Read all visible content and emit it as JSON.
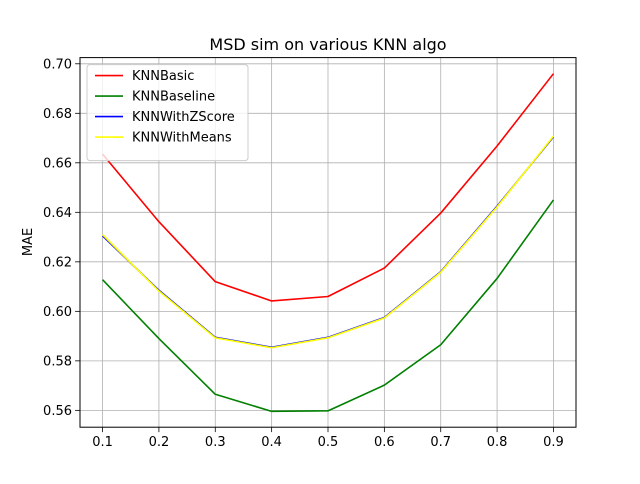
{
  "chart_data": {
    "type": "line",
    "title": "MSD sim on various KNN algo",
    "xlabel": "",
    "ylabel": "MAE",
    "x": [
      0.1,
      0.2,
      0.3,
      0.4,
      0.5,
      0.6,
      0.7,
      0.8,
      0.9
    ],
    "x_tick_labels": [
      "0.1",
      "0.2",
      "0.3",
      "0.4",
      "0.5",
      "0.6",
      "0.7",
      "0.8",
      "0.9"
    ],
    "xlim": [
      0.06,
      0.94
    ],
    "ylim": [
      0.5532,
      0.7025
    ],
    "y_ticks": [
      0.56,
      0.58,
      0.6,
      0.62,
      0.64,
      0.66,
      0.68,
      0.7
    ],
    "y_tick_labels": [
      "0.56",
      "0.58",
      "0.60",
      "0.62",
      "0.64",
      "0.66",
      "0.68",
      "0.70"
    ],
    "grid": true,
    "legend_position": "top-left",
    "series": [
      {
        "name": "KNNBasic",
        "color": "#ff0000",
        "values": [
          0.6635,
          0.6362,
          0.612,
          0.6042,
          0.606,
          0.6175,
          0.6397,
          0.6668,
          0.696
        ]
      },
      {
        "name": "KNNBaseline",
        "color": "#008000",
        "values": [
          0.6128,
          0.589,
          0.5665,
          0.5596,
          0.5598,
          0.5702,
          0.5865,
          0.6133,
          0.645
        ]
      },
      {
        "name": "KNNWithZScore",
        "color": "#0000ff",
        "values": [
          0.6305,
          0.6085,
          0.5895,
          0.5855,
          0.5895,
          0.5975,
          0.616,
          0.6425,
          0.6705
        ]
      },
      {
        "name": "KNNWithMeans",
        "color": "#ffff00",
        "values": [
          0.631,
          0.6082,
          0.5893,
          0.5853,
          0.5893,
          0.5973,
          0.6158,
          0.6422,
          0.6708
        ]
      }
    ]
  }
}
